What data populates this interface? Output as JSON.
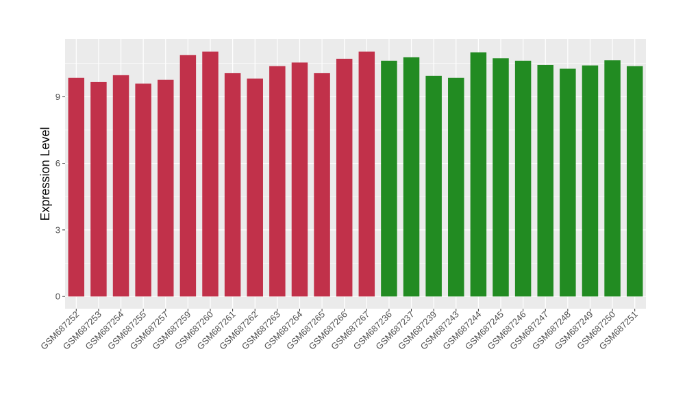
{
  "chart_data": {
    "type": "bar",
    "title": "",
    "xlabel": "",
    "ylabel": "Expression Level",
    "ylim": [
      -0.55,
      11.6
    ],
    "yticks": [
      0,
      3,
      6,
      9
    ],
    "grid": true,
    "legend": "none",
    "colors": {
      "group_a": "#c1314a",
      "group_b": "#228b22",
      "panel": "#ebebeb",
      "grid": "#ffffff"
    },
    "categories": [
      "GSM687252",
      "GSM687253",
      "GSM687254",
      "GSM687255",
      "GSM687257",
      "GSM687259",
      "GSM687260",
      "GSM687261",
      "GSM687262",
      "GSM687263",
      "GSM687264",
      "GSM687265",
      "GSM687266",
      "GSM687267",
      "GSM687236",
      "GSM687237",
      "GSM687239",
      "GSM687243",
      "GSM687244",
      "GSM687245",
      "GSM687246",
      "GSM687247",
      "GSM687248",
      "GSM687249",
      "GSM687250",
      "GSM687251"
    ],
    "values": [
      9.85,
      9.66,
      9.97,
      9.59,
      9.76,
      10.88,
      11.03,
      10.06,
      9.82,
      10.38,
      10.54,
      10.06,
      10.71,
      11.03,
      10.62,
      10.78,
      9.94,
      9.85,
      11.0,
      10.73,
      10.62,
      10.43,
      10.26,
      10.41,
      10.64,
      10.38
    ],
    "groups": [
      "group_a",
      "group_a",
      "group_a",
      "group_a",
      "group_a",
      "group_a",
      "group_a",
      "group_a",
      "group_a",
      "group_a",
      "group_a",
      "group_a",
      "group_a",
      "group_a",
      "group_b",
      "group_b",
      "group_b",
      "group_b",
      "group_b",
      "group_b",
      "group_b",
      "group_b",
      "group_b",
      "group_b",
      "group_b",
      "group_b"
    ]
  }
}
